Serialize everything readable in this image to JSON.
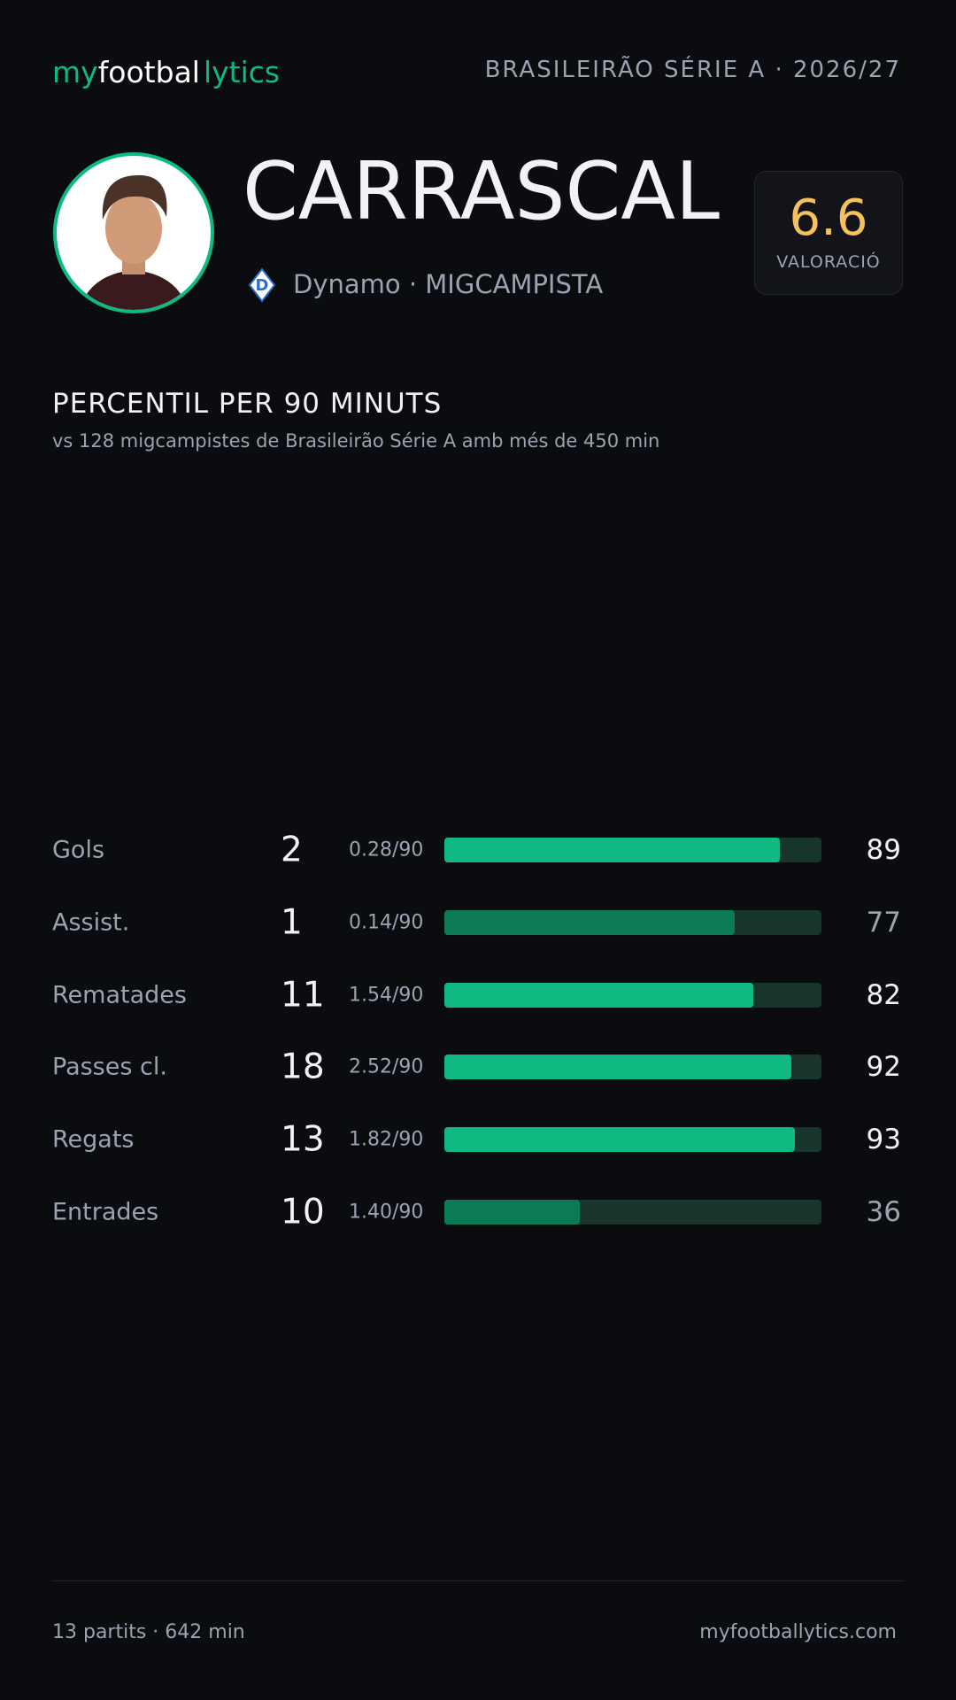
{
  "header": {
    "brand": [
      "my",
      "footbal",
      "lytics"
    ],
    "league": "BRASILEIRÃO SÉRIE A · 2026/27"
  },
  "player": {
    "name": "CARRASCAL",
    "team_line": "Dynamo · MIGCAMPISTA",
    "rating": 6.6,
    "rating_label": "VALORACIÓ"
  },
  "section": {
    "title": "PERCENTIL PER 90 MINUTS",
    "subtitle": "vs 128 migcampistes de Brasileirão Série A amb més de 450 min"
  },
  "stats": {
    "xlim": [
      0,
      100
    ],
    "track_color": "#17352a",
    "rows": [
      {
        "label": "Gols",
        "total": 2,
        "per90": "0.28/90",
        "percentile": 89,
        "color": "#10b981"
      },
      {
        "label": "Assist.",
        "total": 1,
        "per90": "0.14/90",
        "percentile": 77,
        "color": "#0c7a55"
      },
      {
        "label": "Rematades",
        "total": 11,
        "per90": "1.54/90",
        "percentile": 82,
        "color": "#10b981"
      },
      {
        "label": "Passes cl.",
        "total": 18,
        "per90": "2.52/90",
        "percentile": 92,
        "color": "#10b981"
      },
      {
        "label": "Regats",
        "total": 13,
        "per90": "1.82/90",
        "percentile": 93,
        "color": "#10b981"
      },
      {
        "label": "Entrades",
        "total": 10,
        "per90": "1.40/90",
        "percentile": 36,
        "color": "#0c7a55"
      }
    ]
  },
  "footer": {
    "summary": "13 partits · 642 min",
    "site": "myfootballytics.com"
  }
}
